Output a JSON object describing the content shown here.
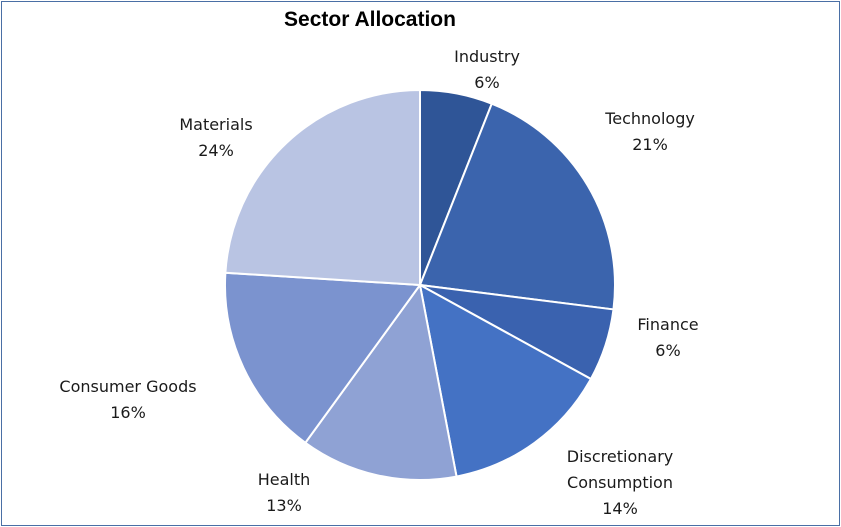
{
  "chart_data": {
    "type": "pie",
    "title": "Sector Allocation",
    "start_angle_deg": 0,
    "direction": "clockwise",
    "slices": [
      {
        "label": "Industry",
        "value": 6,
        "value_label": "6%",
        "color": "#2f5597"
      },
      {
        "label": "Technology",
        "value": 21,
        "value_label": "21%",
        "color": "#3b64ad"
      },
      {
        "label": "Finance",
        "value": 6,
        "value_label": "6%",
        "color": "#3a62af"
      },
      {
        "label": [
          "Discretionary",
          "Consumption"
        ],
        "value": 14,
        "value_label": "14%",
        "color": "#4472c4"
      },
      {
        "label": "Health",
        "value": 13,
        "value_label": "13%",
        "color": "#8fa2d4"
      },
      {
        "label": "Consumer Goods",
        "value": 16,
        "value_label": "16%",
        "color": "#7b93cf"
      },
      {
        "label": "Materials",
        "value": 24,
        "value_label": "24%",
        "color": "#b9c4e3"
      }
    ]
  }
}
